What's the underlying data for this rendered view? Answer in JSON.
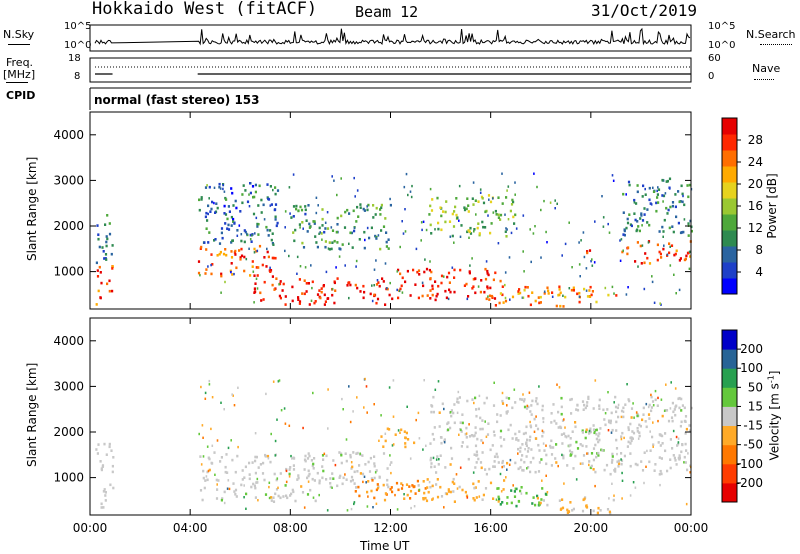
{
  "header": {
    "title": "Hokkaido West (fitACF)",
    "beam": "Beam 12",
    "date": "31/Oct/2019"
  },
  "summary": {
    "nsky_label": "N.Sky",
    "nsky_ticks": [
      "10^5",
      "10^0"
    ],
    "nsearch_label": "N.Search",
    "nsearch_ticks": [
      "10^5",
      "10^0"
    ],
    "freq_label": "Freq.",
    "freq_unit": "[MHz]",
    "freq_ticks": [
      "18",
      "8"
    ],
    "nave_label": "Nave",
    "nave_ticks": [
      "60",
      "0"
    ],
    "cpid_label": "CPID",
    "cpid_text": "normal (fast stereo) 153"
  },
  "chart_data": [
    {
      "type": "heatmap",
      "name": "power",
      "ylabel": "Slant Range [km]",
      "yticks": [
        "4000",
        "3000",
        "2000",
        "1000"
      ],
      "ylim": [
        180,
        4500
      ],
      "xlim_hours": [
        0,
        24
      ],
      "colorbar": {
        "label": "Power [dB]",
        "ticks": [
          "28",
          "24",
          "20",
          "16",
          "12",
          "8",
          "4"
        ],
        "range": [
          0,
          30
        ],
        "colors": [
          "#0000ff",
          "#1e40c8",
          "#2a64a0",
          "#2e8a50",
          "#4ea83a",
          "#9ac832",
          "#e6d21e",
          "#ffaa00",
          "#ff6e00",
          "#ff2800",
          "#e60000"
        ]
      },
      "gaps_hours": [
        [
          0.9,
          4.3
        ]
      ],
      "regions": [
        {
          "t0": 0.2,
          "t1": 0.9,
          "r0": 300,
          "r1": 1200,
          "v": 26
        },
        {
          "t0": 0.2,
          "t1": 0.9,
          "r0": 1200,
          "r1": 2400,
          "v": 8
        },
        {
          "t0": 4.3,
          "t1": 7.5,
          "r0": 900,
          "r1": 1600,
          "v": 25
        },
        {
          "t0": 4.3,
          "t1": 7.5,
          "r0": 1600,
          "r1": 3000,
          "v": 7
        },
        {
          "t0": 6.5,
          "t1": 12.0,
          "r0": 300,
          "r1": 900,
          "v": 28
        },
        {
          "t0": 8.0,
          "t1": 12.0,
          "r0": 1500,
          "r1": 2500,
          "v": 10
        },
        {
          "t0": 12.0,
          "t1": 16.5,
          "r0": 400,
          "r1": 1100,
          "v": 27
        },
        {
          "t0": 13.5,
          "t1": 17.0,
          "r0": 1800,
          "r1": 2700,
          "v": 14
        },
        {
          "t0": 16.0,
          "t1": 21.0,
          "r0": 250,
          "r1": 700,
          "v": 22
        },
        {
          "t0": 19.5,
          "t1": 20.0,
          "r0": 1400,
          "r1": 1600,
          "v": 28
        },
        {
          "t0": 21.2,
          "t1": 24.0,
          "r0": 1200,
          "r1": 1700,
          "v": 26
        },
        {
          "t0": 21.2,
          "t1": 24.0,
          "r0": 1800,
          "r1": 3100,
          "v": 8
        }
      ]
    },
    {
      "type": "heatmap",
      "name": "velocity",
      "ylabel": "Slant Range [km]",
      "yticks": [
        "4000",
        "3000",
        "2000",
        "1000"
      ],
      "ylim": [
        180,
        4500
      ],
      "xlim_hours": [
        0,
        24
      ],
      "xticks": [
        "00:00",
        "04:00",
        "08:00",
        "12:00",
        "16:00",
        "20:00",
        "00:00"
      ],
      "xlabel": "Time UT",
      "colorbar": {
        "label": "Velocity [m s-1]",
        "ticks": [
          "200",
          "100",
          "50",
          "15",
          "-15",
          "-50",
          "-100",
          "-200"
        ],
        "range": [
          -250,
          250
        ],
        "colors": [
          "#e60000",
          "#ff3c00",
          "#ff7800",
          "#ffaa28",
          "#c8c8c8",
          "#64c83c",
          "#28a050",
          "#286496",
          "#0000c8"
        ]
      },
      "gaps_hours": [
        [
          0.9,
          4.3
        ]
      ],
      "regions": [
        {
          "t0": 0.2,
          "t1": 0.9,
          "r0": 300,
          "r1": 1800,
          "v": 0
        },
        {
          "t0": 4.3,
          "t1": 12.0,
          "r0": 800,
          "r1": 1600,
          "v": 0
        },
        {
          "t0": 4.3,
          "t1": 9.0,
          "r0": 500,
          "r1": 800,
          "v": 0
        },
        {
          "t0": 10.5,
          "t1": 13.5,
          "r0": 500,
          "r1": 1000,
          "v": -90
        },
        {
          "t0": 11.5,
          "t1": 13.0,
          "r0": 1700,
          "r1": 2100,
          "v": -60
        },
        {
          "t0": 13.0,
          "t1": 16.5,
          "r0": 500,
          "r1": 1000,
          "v": -40
        },
        {
          "t0": 16.0,
          "t1": 18.5,
          "r0": 400,
          "r1": 900,
          "v": 70
        },
        {
          "t0": 17.5,
          "t1": 21.0,
          "r0": 250,
          "r1": 600,
          "v": -40
        },
        {
          "t0": 19.0,
          "t1": 20.5,
          "r0": 1500,
          "r1": 2100,
          "v": 40
        },
        {
          "t0": 13.5,
          "t1": 24.0,
          "r0": 1100,
          "r1": 2800,
          "v": 0
        }
      ]
    }
  ]
}
